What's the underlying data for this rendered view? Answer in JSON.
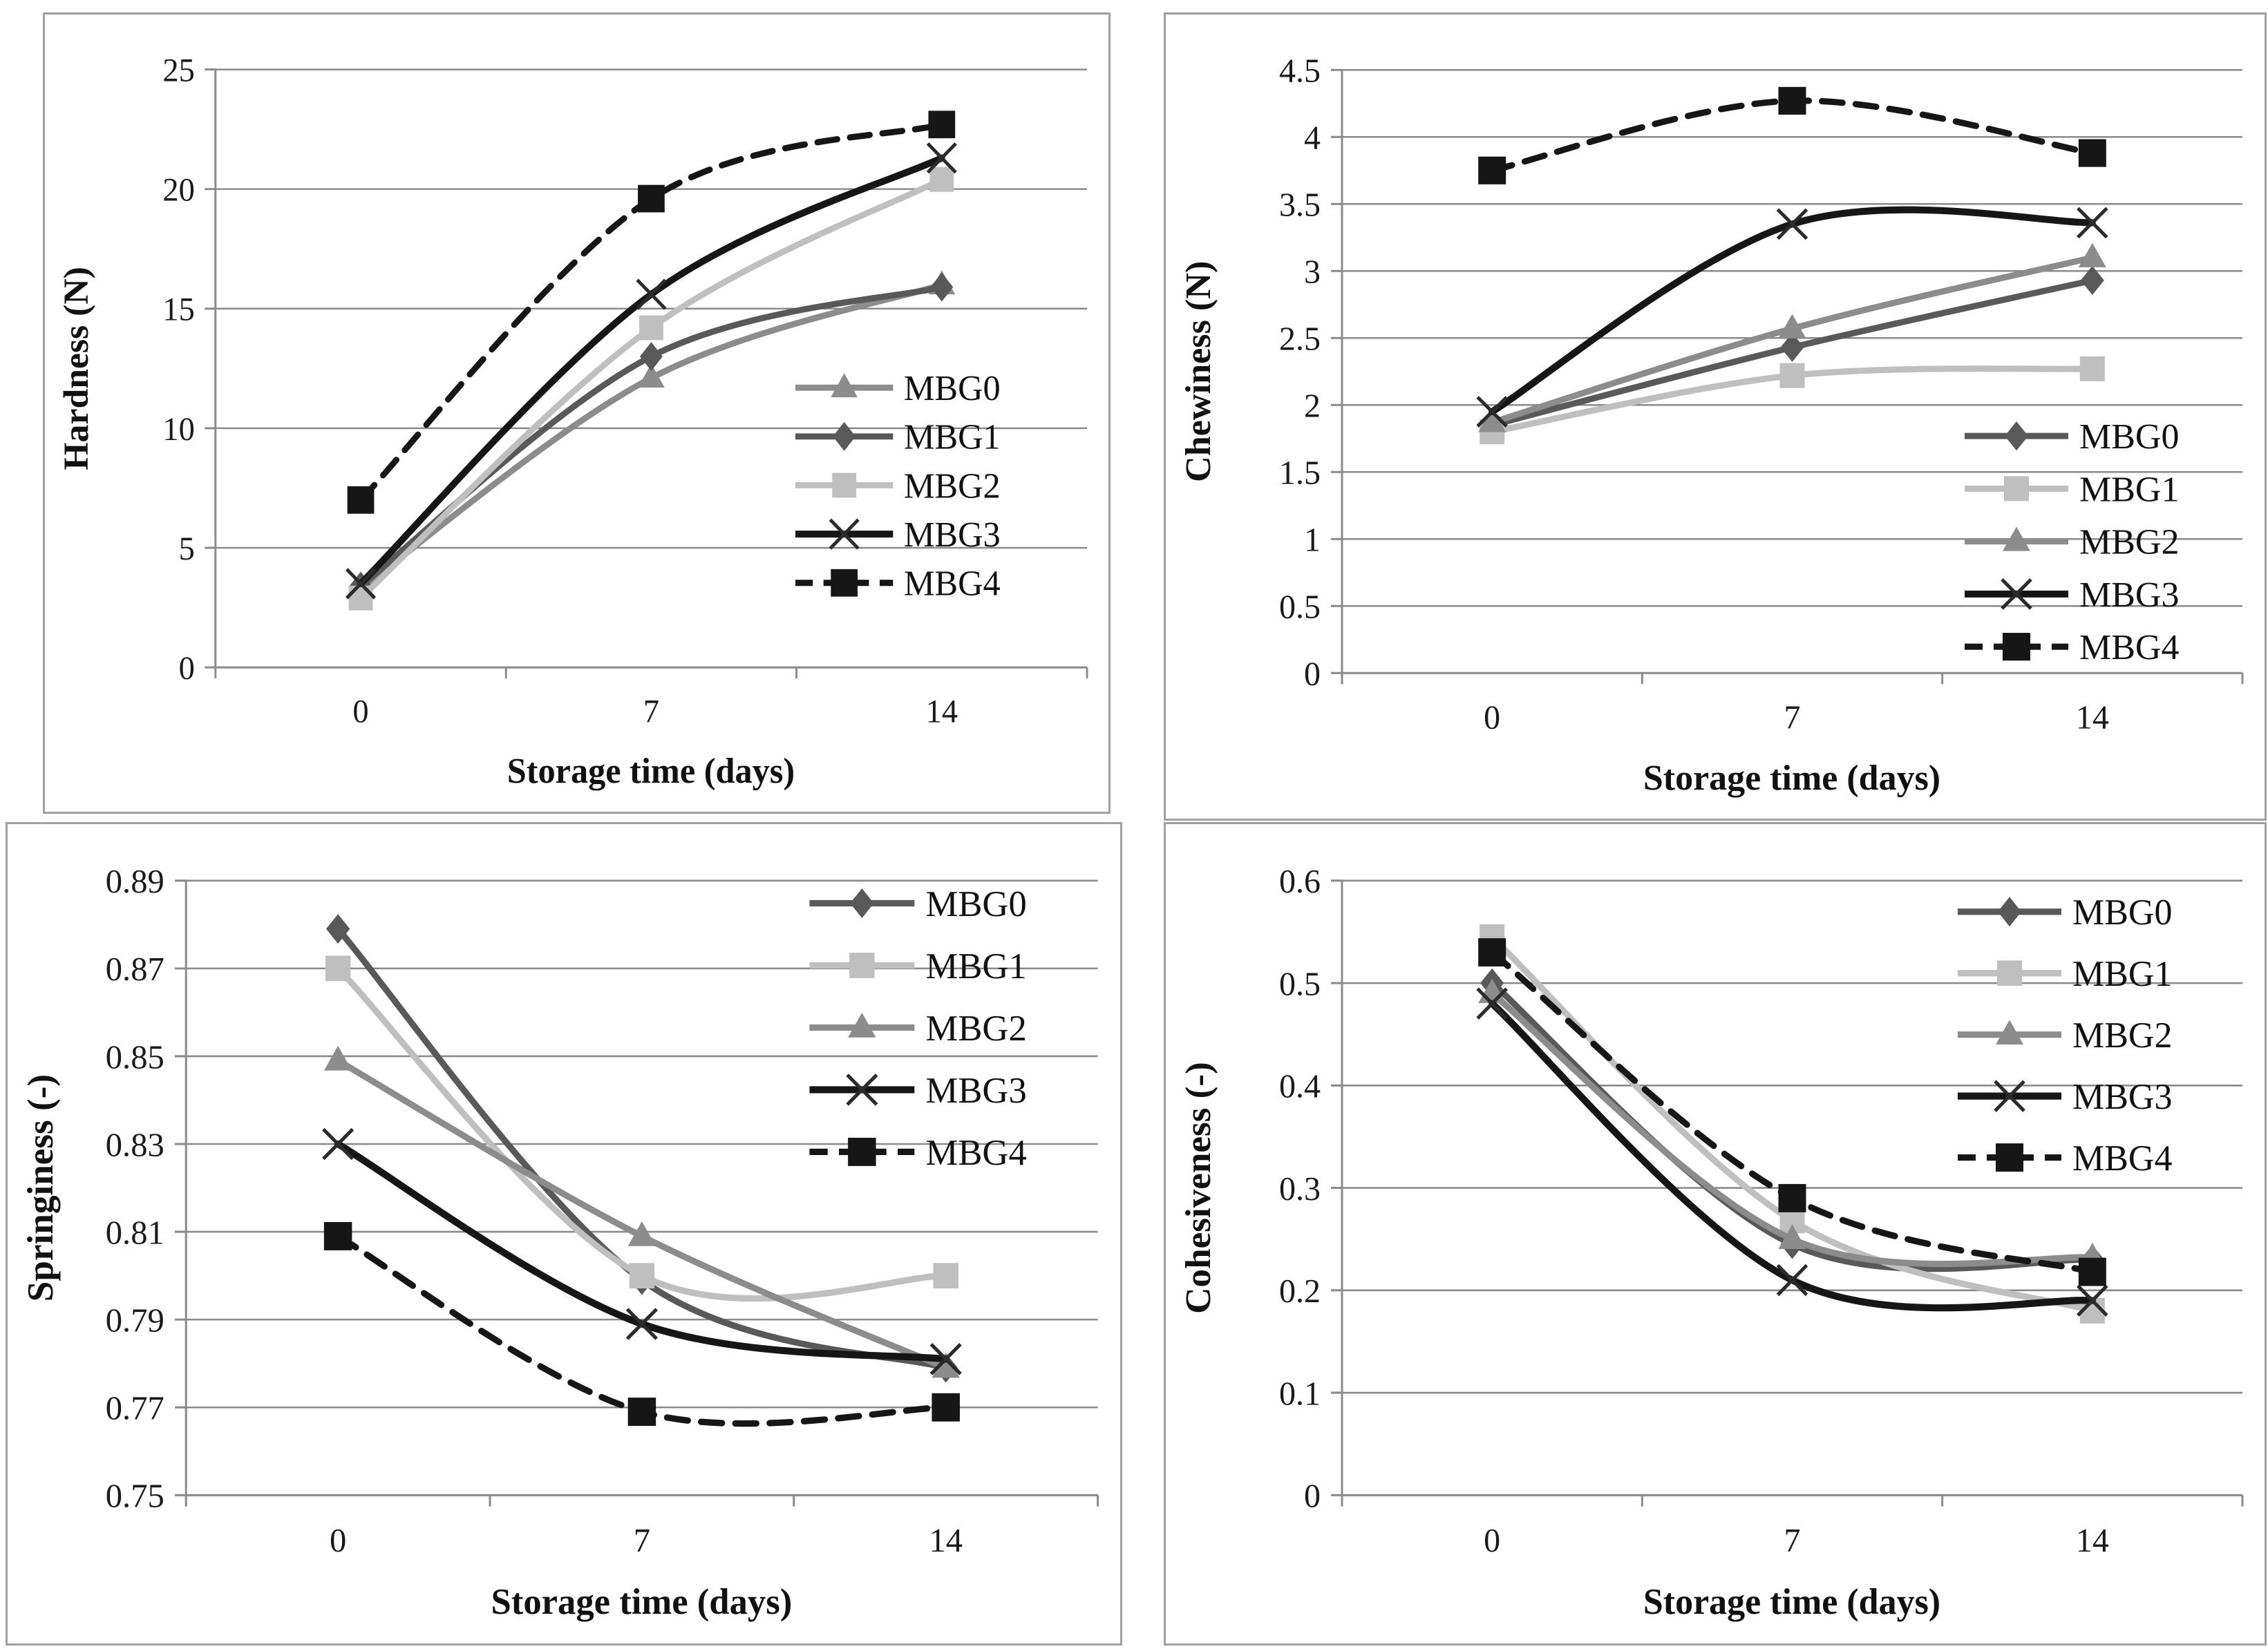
{
  "figure": {
    "description_labels": {
      "x_axis_title": "Storage time (days)",
      "x_tick_labels": [
        "0",
        "7",
        "14"
      ],
      "series_names": [
        "MBG0",
        "MBG1",
        "MBG2",
        "MBG3",
        "MBG4"
      ]
    },
    "colors": {
      "dark_gray": "#595959",
      "medium_gray": "#8c8c8c",
      "light_gray": "#bfbfbf",
      "black": "#161616",
      "grid_gray": "#8a8a8a"
    }
  },
  "chart_data": [
    {
      "type": "line",
      "ylabel": "Hardness (N)",
      "xlabel": "Storage time (days)",
      "x": [
        0,
        7,
        14
      ],
      "x_tick_labels": [
        "0",
        "7",
        "14"
      ],
      "ylim": [
        0,
        25
      ],
      "ytick_labels": [
        "0",
        "5",
        "10",
        "15",
        "20",
        "25"
      ],
      "grid": true,
      "legend_position": "center-right",
      "series": [
        {
          "name": "MBG0",
          "marker": "triangle",
          "color": "#8c8c8c",
          "dash": false,
          "values": [
            3.3,
            12.1,
            16.0
          ]
        },
        {
          "name": "MBG1",
          "marker": "diamond",
          "color": "#595959",
          "dash": false,
          "values": [
            3.4,
            13.0,
            15.9
          ]
        },
        {
          "name": "MBG2",
          "marker": "square",
          "color": "#bfbfbf",
          "dash": false,
          "values": [
            2.9,
            14.2,
            20.4
          ]
        },
        {
          "name": "MBG3",
          "marker": "x",
          "color": "#161616",
          "dash": false,
          "values": [
            3.5,
            15.6,
            21.3
          ]
        },
        {
          "name": "MBG4",
          "marker": "square-filled",
          "color": "#161616",
          "dash": true,
          "values": [
            7.0,
            19.6,
            22.7
          ]
        }
      ]
    },
    {
      "type": "line",
      "ylabel": "Chewiness (N)",
      "xlabel": "Storage time (days)",
      "x": [
        0,
        7,
        14
      ],
      "x_tick_labels": [
        "0",
        "7",
        "14"
      ],
      "ylim": [
        0,
        4.5
      ],
      "ytick_labels": [
        "0",
        "0.5",
        "1",
        "1.5",
        "2",
        "2.5",
        "3",
        "3.5",
        "4",
        "4.5"
      ],
      "grid": true,
      "legend_position": "bottom-right",
      "series": [
        {
          "name": "MBG0",
          "marker": "diamond",
          "color": "#595959",
          "dash": false,
          "values": [
            1.85,
            2.43,
            2.93
          ]
        },
        {
          "name": "MBG1",
          "marker": "square",
          "color": "#bfbfbf",
          "dash": false,
          "values": [
            1.8,
            2.22,
            2.27
          ]
        },
        {
          "name": "MBG2",
          "marker": "triangle",
          "color": "#8c8c8c",
          "dash": false,
          "values": [
            1.87,
            2.57,
            3.1
          ]
        },
        {
          "name": "MBG3",
          "marker": "x",
          "color": "#161616",
          "dash": false,
          "values": [
            1.95,
            3.35,
            3.36
          ]
        },
        {
          "name": "MBG4",
          "marker": "square-filled",
          "color": "#161616",
          "dash": true,
          "values": [
            3.75,
            4.27,
            3.88
          ]
        }
      ]
    },
    {
      "type": "line",
      "ylabel": "Springiness (-)",
      "xlabel": "Storage time (days)",
      "x": [
        0,
        7,
        14
      ],
      "x_tick_labels": [
        "0",
        "7",
        "14"
      ],
      "ylim": [
        0.75,
        0.89
      ],
      "ytick_labels": [
        "0.75",
        "0.77",
        "0.79",
        "0.81",
        "0.83",
        "0.85",
        "0.87",
        "0.89"
      ],
      "grid": true,
      "legend_position": "top-right",
      "series": [
        {
          "name": "MBG0",
          "marker": "diamond",
          "color": "#595959",
          "dash": false,
          "values": [
            0.879,
            0.799,
            0.779
          ]
        },
        {
          "name": "MBG1",
          "marker": "square",
          "color": "#bfbfbf",
          "dash": false,
          "values": [
            0.87,
            0.8,
            0.8
          ]
        },
        {
          "name": "MBG2",
          "marker": "triangle",
          "color": "#8c8c8c",
          "dash": false,
          "values": [
            0.849,
            0.809,
            0.779
          ]
        },
        {
          "name": "MBG3",
          "marker": "x",
          "color": "#161616",
          "dash": false,
          "values": [
            0.83,
            0.789,
            0.781
          ]
        },
        {
          "name": "MBG4",
          "marker": "square-filled",
          "color": "#161616",
          "dash": true,
          "values": [
            0.809,
            0.769,
            0.77
          ]
        }
      ]
    },
    {
      "type": "line",
      "ylabel": "Cohesiveness (-)",
      "xlabel": "Storage time (days)",
      "x": [
        0,
        7,
        14
      ],
      "x_tick_labels": [
        "0",
        "7",
        "14"
      ],
      "ylim": [
        0,
        0.6
      ],
      "ytick_labels": [
        "0",
        "0.1",
        "0.2",
        "0.3",
        "0.4",
        "0.5",
        "0.6"
      ],
      "grid": true,
      "legend_position": "top-right",
      "series": [
        {
          "name": "MBG0",
          "marker": "diamond",
          "color": "#595959",
          "dash": false,
          "values": [
            0.5,
            0.245,
            0.23
          ]
        },
        {
          "name": "MBG1",
          "marker": "square",
          "color": "#bfbfbf",
          "dash": false,
          "values": [
            0.545,
            0.268,
            0.18
          ]
        },
        {
          "name": "MBG2",
          "marker": "triangle",
          "color": "#8c8c8c",
          "dash": false,
          "values": [
            0.49,
            0.25,
            0.232
          ]
        },
        {
          "name": "MBG3",
          "marker": "x",
          "color": "#161616",
          "dash": false,
          "values": [
            0.48,
            0.21,
            0.19
          ]
        },
        {
          "name": "MBG4",
          "marker": "square-filled",
          "color": "#161616",
          "dash": true,
          "values": [
            0.53,
            0.29,
            0.218
          ]
        }
      ]
    }
  ]
}
